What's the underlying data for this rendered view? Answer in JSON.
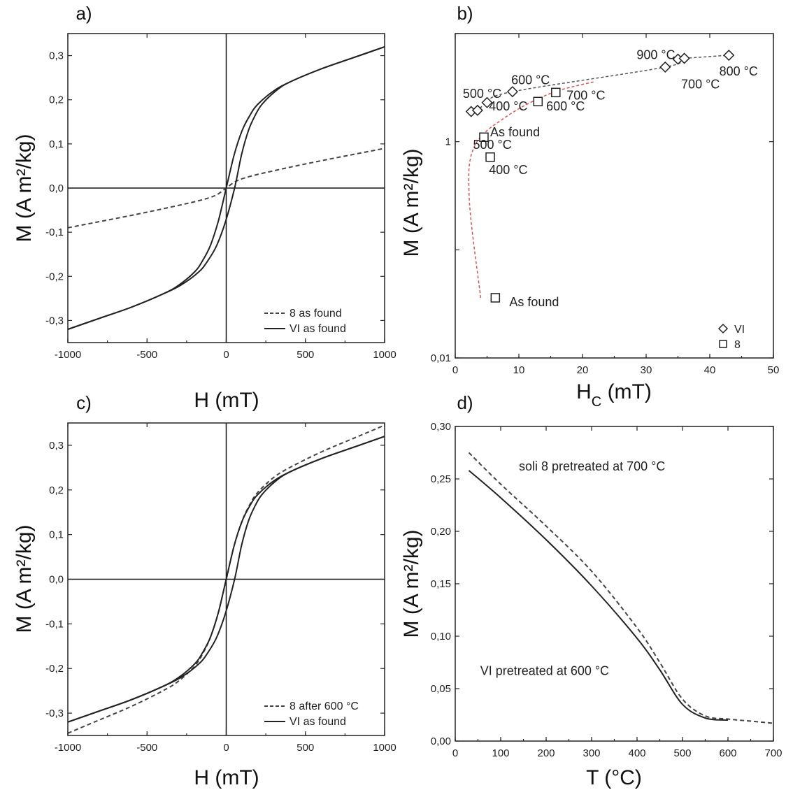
{
  "colors": {
    "axis": "#222222",
    "solid": "#222222",
    "dashed": "#444444",
    "trend_red": "#e05050",
    "trend_gray": "#555555"
  },
  "chart_data": [
    {
      "panel_label": "a)",
      "type": "line",
      "xlabel": "H (mT)",
      "ylabel": "M (A m²/kg)",
      "xlim": [
        -1000,
        1000
      ],
      "ylim": [
        -0.35,
        0.35
      ],
      "xticks": [
        "-1000",
        "-500",
        "0",
        "500",
        "1000"
      ],
      "yticks": [
        "-0,3",
        "-0,2",
        "-0,1",
        "0,0",
        "0,1",
        "0,2",
        "0,3"
      ],
      "legend": {
        "position": "bottom-right"
      },
      "series": [
        {
          "name": "8 as found",
          "style": "dashed",
          "x": [
            -1000,
            -800,
            -600,
            -400,
            -200,
            -100,
            -50,
            0,
            50,
            100,
            200,
            400,
            600,
            800,
            1000
          ],
          "y": [
            -0.09,
            -0.076,
            -0.062,
            -0.047,
            -0.031,
            -0.021,
            -0.013,
            0.0,
            0.013,
            0.021,
            0.031,
            0.047,
            0.062,
            0.076,
            0.09
          ]
        },
        {
          "name": "VI as found",
          "style": "solid",
          "x": [
            -1000,
            -800,
            -600,
            -400,
            -300,
            -200,
            -150,
            -100,
            -50,
            0,
            50,
            100,
            150,
            200,
            300,
            400,
            600,
            800,
            1000
          ],
          "y": [
            -0.32,
            -0.295,
            -0.27,
            -0.24,
            -0.22,
            -0.19,
            -0.165,
            -0.13,
            -0.075,
            0.0,
            0.075,
            0.13,
            0.165,
            0.19,
            0.22,
            0.24,
            0.27,
            0.295,
            0.32
          ]
        }
      ]
    },
    {
      "panel_label": "b)",
      "type": "scatter",
      "xlabel": "H_C (mT)",
      "ylabel": "M (A m²/kg)",
      "xlim": [
        0,
        50
      ],
      "ylim": [
        0.01,
        10
      ],
      "yscale": "log",
      "xticks": [
        "0",
        "10",
        "20",
        "30",
        "40",
        "50"
      ],
      "yticks": [
        "0,01",
        "1"
      ],
      "legend": {
        "position": "bottom-right"
      },
      "series": [
        {
          "name": "VI",
          "marker": "diamond",
          "x": [
            2.5,
            3.5,
            5,
            9,
            33,
            35,
            36,
            43
          ],
          "y": [
            1.9,
            1.95,
            2.3,
            2.9,
            4.9,
            5.8,
            5.9,
            6.3
          ]
        },
        {
          "name": "8",
          "marker": "square",
          "x": [
            4.5,
            5.5,
            13,
            15.8,
            6.3
          ],
          "y": [
            1.1,
            0.72,
            2.35,
            2.85,
            0.036
          ]
        }
      ],
      "annotations": [
        {
          "text": "900 °C",
          "x": 28.5,
          "y": 5.8
        },
        {
          "text": "800 °C",
          "x": 41.5,
          "y": 4.1
        },
        {
          "text": "700 °C",
          "x": 35.5,
          "y": 3.1
        },
        {
          "text": "600 °C",
          "x": 8.8,
          "y": 3.4
        },
        {
          "text": "500 °C",
          "x": 1.2,
          "y": 2.55
        },
        {
          "text": "700 °C",
          "x": 17.5,
          "y": 2.45
        },
        {
          "text": "400 °C",
          "x": 5.3,
          "y": 1.95
        },
        {
          "text": "600 °C",
          "x": 14.3,
          "y": 1.95
        },
        {
          "text": "As found",
          "x": 5.5,
          "y": 1.12
        },
        {
          "text": "500 °C",
          "x": 2.8,
          "y": 0.86
        },
        {
          "text": "400 °C",
          "x": 5.3,
          "y": 0.5
        },
        {
          "text": "As found",
          "x": 8.5,
          "y": 0.03
        }
      ]
    },
    {
      "panel_label": "c)",
      "type": "line",
      "xlabel": "H (mT)",
      "ylabel": "M (A m²/kg)",
      "xlim": [
        -1000,
        1000
      ],
      "ylim": [
        -0.35,
        0.35
      ],
      "xticks": [
        "-1000",
        "-500",
        "0",
        "500",
        "1000"
      ],
      "yticks": [
        "-0,3",
        "-0,2",
        "-0,1",
        "0,0",
        "0,1",
        "0,2",
        "0,3"
      ],
      "legend": {
        "position": "bottom-right"
      },
      "series": [
        {
          "name": "8 after 600 °C",
          "style": "dashed",
          "x": [
            -1000,
            -800,
            -600,
            -400,
            -300,
            -200,
            -150,
            -100,
            -50,
            0,
            50,
            100,
            150,
            200,
            300,
            400,
            600,
            800,
            1000
          ],
          "y": [
            -0.345,
            -0.315,
            -0.285,
            -0.25,
            -0.228,
            -0.195,
            -0.168,
            -0.13,
            -0.075,
            0.0,
            0.075,
            0.13,
            0.168,
            0.195,
            0.228,
            0.25,
            0.285,
            0.315,
            0.345
          ]
        },
        {
          "name": "VI as found",
          "style": "solid",
          "x": [
            -1000,
            -800,
            -600,
            -400,
            -300,
            -200,
            -150,
            -100,
            -50,
            0,
            50,
            100,
            150,
            200,
            300,
            400,
            600,
            800,
            1000
          ],
          "y": [
            -0.32,
            -0.295,
            -0.27,
            -0.24,
            -0.22,
            -0.19,
            -0.165,
            -0.13,
            -0.075,
            0.0,
            0.075,
            0.13,
            0.165,
            0.19,
            0.22,
            0.24,
            0.27,
            0.295,
            0.32
          ]
        }
      ]
    },
    {
      "panel_label": "d)",
      "type": "line",
      "xlabel": "T (°C)",
      "ylabel": "M (A m²/kg)",
      "xlim": [
        0,
        700
      ],
      "ylim": [
        0,
        0.3
      ],
      "xticks": [
        "0",
        "100",
        "200",
        "300",
        "400",
        "500",
        "600",
        "700"
      ],
      "yticks": [
        "0,00",
        "0,05",
        "0,10",
        "0,15",
        "0,20",
        "0,25",
        "0,30"
      ],
      "series": [
        {
          "name": "soli 8 pretreated at 700 °C",
          "style": "dashed",
          "x": [
            30,
            100,
            200,
            300,
            400,
            450,
            500,
            550,
            600,
            650,
            700
          ],
          "y": [
            0.275,
            0.245,
            0.205,
            0.162,
            0.108,
            0.075,
            0.04,
            0.024,
            0.021,
            0.019,
            0.017
          ]
        },
        {
          "name": "VI pretreated at 600 °C",
          "style": "solid",
          "x": [
            30,
            100,
            200,
            300,
            400,
            450,
            500,
            550,
            600
          ],
          "y": [
            0.258,
            0.232,
            0.192,
            0.148,
            0.098,
            0.068,
            0.035,
            0.022,
            0.02
          ]
        }
      ],
      "annotations": [
        {
          "text": "soli 8 pretreated at 700 °C",
          "x": 140,
          "y": 0.258
        },
        {
          "text": "VI pretreated at 600 °C",
          "x": 55,
          "y": 0.063
        }
      ]
    }
  ]
}
